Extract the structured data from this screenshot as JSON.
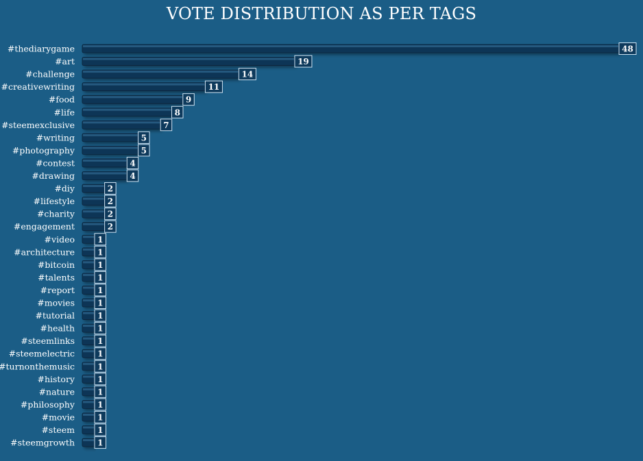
{
  "chart_data": {
    "type": "bar",
    "orientation": "horizontal",
    "title": "VOTE DISTRIBUTION AS PER TAGS",
    "categories": [
      "#thediarygame",
      "#art",
      "#challenge",
      "#creativewriting",
      "#food",
      "#life",
      "#steemexclusive",
      "#writing",
      "#photography",
      "#contest",
      "#drawing",
      "#diy",
      "#lifestyle",
      "#charity",
      "#engagement",
      "#video",
      "#architecture",
      "#bitcoin",
      "#talents",
      "#report",
      "#movies",
      "#tutorial",
      "#health",
      "#steemlinks",
      "#steemelectric",
      "#turnonthemusic",
      "#history",
      "#nature",
      "#philosophy",
      "#movie",
      "#steem",
      "#steemgrowth"
    ],
    "values": [
      48,
      19,
      14,
      11,
      9,
      8,
      7,
      5,
      5,
      4,
      4,
      2,
      2,
      2,
      2,
      1,
      1,
      1,
      1,
      1,
      1,
      1,
      1,
      1,
      1,
      1,
      1,
      1,
      1,
      1,
      1,
      1
    ],
    "data_labels": true,
    "grid": false,
    "legend": "none",
    "colors": {
      "background": "#1b5d86",
      "bar": "#0d3656",
      "bar_highlight": "#2a5f86",
      "label_box": "#0e3a5c",
      "text": "#ffffff"
    }
  }
}
